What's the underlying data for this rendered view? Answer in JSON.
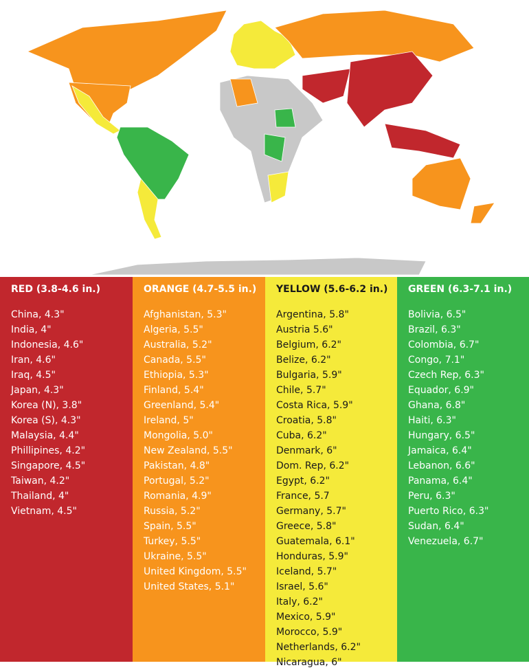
{
  "columns": [
    {
      "header": "RED (3.8-4.6 in.)",
      "items": [
        "China, 4.3\"",
        "India, 4\"",
        "Indonesia, 4.6\"",
        "Iran, 4.6\"",
        "Iraq, 4.5\"",
        "Japan, 4.3\"",
        "Korea (N), 3.8\"",
        "Korea (S), 4.3\"",
        "Malaysia, 4.4\"",
        "Phillipines, 4.2\"",
        "Singapore, 4.5\"",
        "Taiwan, 4.2\"",
        "Thailand, 4\"",
        "Vietnam, 4.5\""
      ]
    },
    {
      "header": "ORANGE (4.7-5.5 in.)",
      "items": [
        "Afghanistan, 5.3\"",
        "Algeria, 5.5\"",
        "Australia, 5.2\"",
        "Canada, 5.5\"",
        "Ethiopia, 5.3\"",
        "Finland, 5.4\"",
        "Greenland, 5.4\"",
        "Ireland, 5\"",
        "Mongolia, 5.0\"",
        "New Zealand, 5.5\"",
        "Pakistan, 4.8\"",
        "Portugal, 5.2\"",
        "Romania, 4.9\"",
        "Russia, 5.2\"",
        "Spain, 5.5\"",
        "Turkey, 5.5\"",
        "Ukraine, 5.5\"",
        "United Kingdom, 5.5\"",
        "United States, 5.1\""
      ]
    },
    {
      "header": "YELLOW (5.6-6.2 in.)",
      "items": [
        "Argentina, 5.8\"",
        "Austria 5.6\"",
        "Belgium, 6.2\"",
        "Belize, 6.2\"",
        "Bulgaria, 5.9\"",
        "Chile, 5.7\"",
        "Costa Rica, 5.9\"",
        "Croatia, 5.8\"",
        "Cuba, 6.2\"",
        "Denmark, 6\"",
        "Dom. Rep, 6.2\"",
        "Egypt, 6.2\"",
        "France, 5.7",
        "Germany, 5.7\"",
        "Greece, 5.8\"",
        "Guatemala, 6.1\"",
        "Honduras, 5.9\"",
        "Iceland, 5.7\"",
        "Israel, 5.6\"",
        "Italy, 6.2\"",
        "Mexico, 5.9\"",
        "Morocco, 5.9\"",
        "Netherlands, 6.2\"",
        "Nicaragua, 6\""
      ]
    },
    {
      "header": "GREEN (6.3-7.1 in.)",
      "items": [
        "Bolivia, 6.5\"",
        "Brazil, 6.3\"",
        "Colombia, 6.7\"",
        "Congo, 7.1\"",
        "Czech Rep, 6.3\"",
        "Equador, 6.9\"",
        "Ghana, 6.8\"",
        "Haiti, 6.3\"",
        "Hungary, 6.5\"",
        "Jamaica, 6.4\"",
        "Lebanon, 6.6\"",
        "Panama, 6.4\"",
        "Peru, 6.3\"",
        "Puerto Rico, 6.3\"",
        "Sudan, 6.4\"",
        "Venezuela, 6.7\""
      ]
    }
  ]
}
